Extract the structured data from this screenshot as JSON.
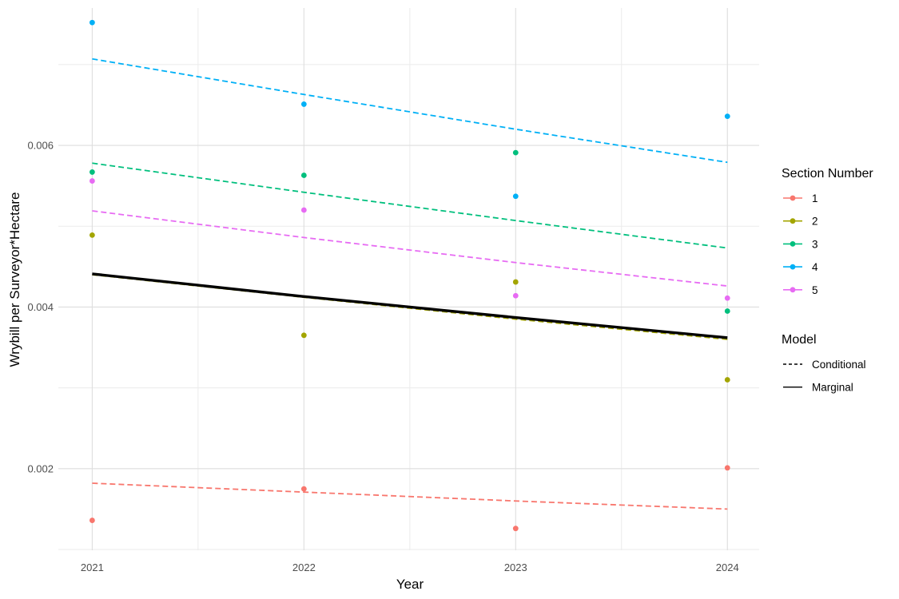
{
  "chart_data": {
    "type": "line",
    "xlabel": "Year",
    "ylabel": "Wrybill per Surveyor*Hectare",
    "x": [
      2021,
      2022,
      2023,
      2024
    ],
    "x_ticks": [
      "2021",
      "2022",
      "2023",
      "2024"
    ],
    "y_ticks": [
      "0.002",
      "0.004",
      "0.006"
    ],
    "ylim": [
      0.00099,
      0.0077
    ],
    "xlim": [
      2020.84,
      2024.15
    ],
    "grid": true,
    "legend_placement": "right",
    "legend": {
      "color_title": "Section Number",
      "linetype_title": "Model",
      "linetype_entries": [
        {
          "label": "Conditional",
          "dash": "dashed"
        },
        {
          "label": "Marginal",
          "dash": "solid"
        }
      ]
    },
    "series": [
      {
        "name": "1",
        "color": "#F8766D",
        "observed": [
          0.00136,
          0.00175,
          0.00126,
          0.00201
        ],
        "conditional": [
          0.00182,
          0.00171,
          0.0016,
          0.0015
        ]
      },
      {
        "name": "2",
        "color": "#A3A500",
        "observed": [
          0.00489,
          0.00365,
          0.00431,
          0.0031
        ],
        "conditional": [
          0.0044,
          0.00412,
          0.00385,
          0.0036
        ]
      },
      {
        "name": "3",
        "color": "#00BF7D",
        "observed": [
          0.00567,
          0.00563,
          0.00591,
          0.00395
        ],
        "conditional": [
          0.00578,
          0.00542,
          0.00507,
          0.00473
        ]
      },
      {
        "name": "4",
        "color": "#00B0F6",
        "observed": [
          0.00752,
          0.00651,
          0.00537,
          0.00636
        ],
        "conditional": [
          0.00707,
          0.00663,
          0.0062,
          0.00579
        ]
      },
      {
        "name": "5",
        "color": "#E76BF3",
        "observed": [
          0.00556,
          0.0052,
          0.00414,
          0.00411
        ],
        "conditional": [
          0.00519,
          0.00486,
          0.00455,
          0.00426
        ]
      }
    ],
    "marginal": {
      "color": "#000000",
      "values": [
        0.00441,
        0.00413,
        0.00387,
        0.00362
      ]
    }
  }
}
